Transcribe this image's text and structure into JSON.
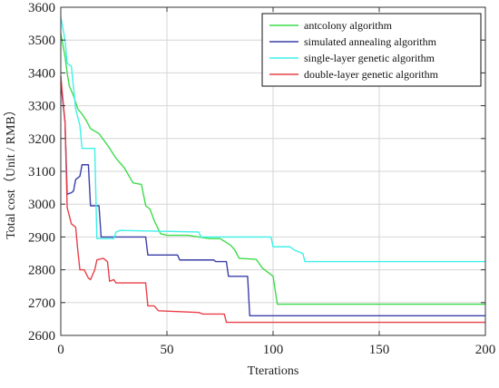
{
  "chart_data": {
    "type": "line",
    "title": "",
    "xlabel": "Tterations",
    "ylabel": "Total cost（Unit / RMB）",
    "xlim": [
      0,
      200
    ],
    "ylim": [
      2600,
      3600
    ],
    "xticks": [
      0,
      50,
      100,
      150,
      200
    ],
    "yticks": [
      2600,
      2700,
      2800,
      2900,
      3000,
      3100,
      3200,
      3300,
      3400,
      3500,
      3600
    ],
    "grid": true,
    "legend_position": "top-right",
    "series": [
      {
        "name": "antcolony algorithm",
        "color": "#3ddc4a",
        "points": [
          [
            0,
            3520
          ],
          [
            2,
            3450
          ],
          [
            3,
            3400
          ],
          [
            4,
            3360
          ],
          [
            6,
            3330
          ],
          [
            8,
            3290
          ],
          [
            10,
            3275
          ],
          [
            12,
            3255
          ],
          [
            14,
            3230
          ],
          [
            18,
            3215
          ],
          [
            22,
            3180
          ],
          [
            26,
            3140
          ],
          [
            30,
            3110
          ],
          [
            34,
            3065
          ],
          [
            38,
            3060
          ],
          [
            40,
            2995
          ],
          [
            42,
            2985
          ],
          [
            44,
            2950
          ],
          [
            47,
            2910
          ],
          [
            50,
            2905
          ],
          [
            60,
            2905
          ],
          [
            65,
            2900
          ],
          [
            70,
            2895
          ],
          [
            75,
            2895
          ],
          [
            80,
            2875
          ],
          [
            82,
            2860
          ],
          [
            84,
            2835
          ],
          [
            92,
            2832
          ],
          [
            95,
            2805
          ],
          [
            100,
            2780
          ],
          [
            102,
            2695
          ],
          [
            200,
            2695
          ]
        ]
      },
      {
        "name": "simulated annealing algorithm",
        "color": "#3a3fa8",
        "points": [
          [
            0,
            3370
          ],
          [
            2,
            3250
          ],
          [
            3,
            3030
          ],
          [
            5,
            3035
          ],
          [
            6,
            3040
          ],
          [
            7,
            3075
          ],
          [
            9,
            3085
          ],
          [
            10,
            3120
          ],
          [
            13,
            3120
          ],
          [
            14,
            2995
          ],
          [
            18,
            2995
          ],
          [
            19,
            2900
          ],
          [
            40,
            2900
          ],
          [
            41,
            2845
          ],
          [
            55,
            2845
          ],
          [
            56,
            2830
          ],
          [
            72,
            2830
          ],
          [
            73,
            2825
          ],
          [
            78,
            2825
          ],
          [
            79,
            2780
          ],
          [
            88,
            2780
          ],
          [
            89,
            2660
          ],
          [
            200,
            2660
          ]
        ]
      },
      {
        "name": "single-layer genetic algorithm",
        "color": "#3ff0e8",
        "points": [
          [
            0,
            3570
          ],
          [
            2,
            3500
          ],
          [
            3,
            3430
          ],
          [
            5,
            3420
          ],
          [
            7,
            3290
          ],
          [
            9,
            3240
          ],
          [
            10,
            3170
          ],
          [
            16,
            3170
          ],
          [
            17,
            2895
          ],
          [
            25,
            2895
          ],
          [
            26,
            2915
          ],
          [
            28,
            2920
          ],
          [
            65,
            2915
          ],
          [
            66,
            2900
          ],
          [
            99,
            2900
          ],
          [
            100,
            2870
          ],
          [
            108,
            2870
          ],
          [
            110,
            2860
          ],
          [
            114,
            2850
          ],
          [
            115,
            2825
          ],
          [
            200,
            2825
          ]
        ]
      },
      {
        "name": "double-layer genetic algorithm",
        "color": "#e8404a",
        "points": [
          [
            0,
            3390
          ],
          [
            2,
            3250
          ],
          [
            3,
            2990
          ],
          [
            5,
            2940
          ],
          [
            7,
            2930
          ],
          [
            8,
            2860
          ],
          [
            9,
            2800
          ],
          [
            11,
            2800
          ],
          [
            13,
            2775
          ],
          [
            14,
            2770
          ],
          [
            16,
            2800
          ],
          [
            17,
            2830
          ],
          [
            20,
            2835
          ],
          [
            22,
            2825
          ],
          [
            23,
            2765
          ],
          [
            25,
            2770
          ],
          [
            26,
            2760
          ],
          [
            40,
            2760
          ],
          [
            41,
            2690
          ],
          [
            44,
            2690
          ],
          [
            46,
            2675
          ],
          [
            65,
            2670
          ],
          [
            67,
            2665
          ],
          [
            77,
            2665
          ],
          [
            78,
            2640
          ],
          [
            200,
            2640
          ]
        ]
      }
    ]
  }
}
